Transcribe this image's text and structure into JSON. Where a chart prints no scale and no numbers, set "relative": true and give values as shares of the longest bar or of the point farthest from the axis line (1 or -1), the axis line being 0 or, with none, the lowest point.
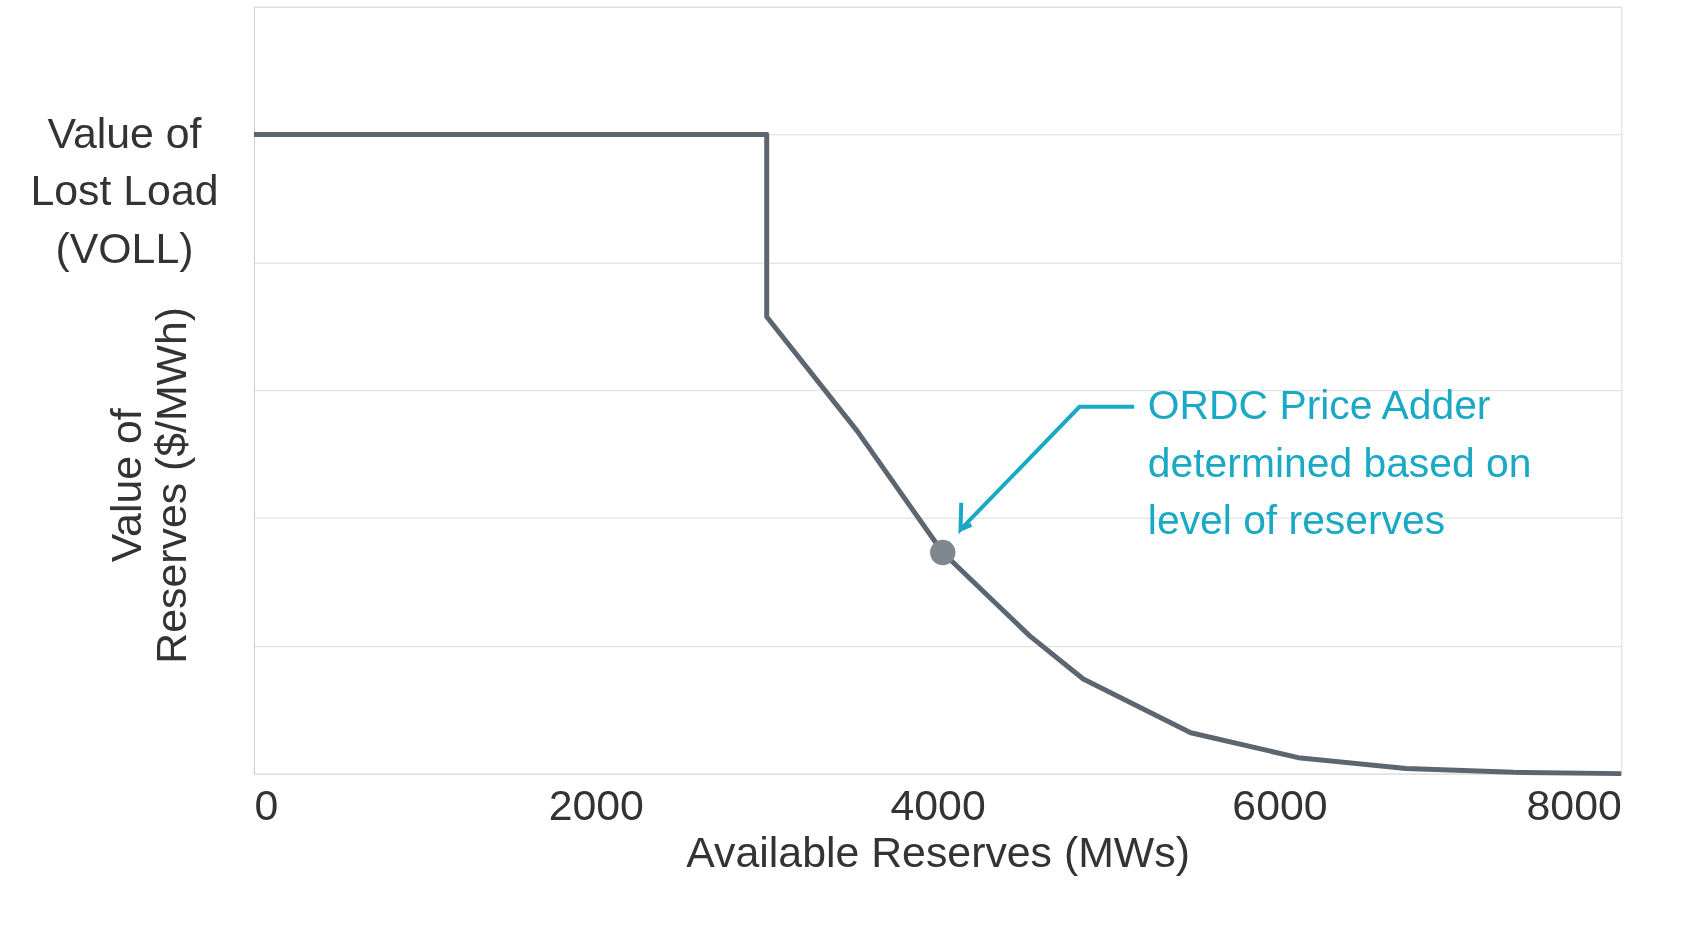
{
  "chart_data": {
    "type": "line",
    "relative": true,
    "xlabel": "Available Reserves (MWs)",
    "ylabel": "Value of\nReserves ($/MWh)",
    "xlim": [
      0,
      8000
    ],
    "xticks": [
      0,
      2000,
      4000,
      6000,
      8000
    ],
    "grid": "y",
    "marker": "none",
    "line_style": "solid",
    "series": [
      {
        "color": "#5c6670",
        "x": [
          0,
          3000,
          3000,
          3530,
          4030,
          4537,
          4852,
          5481,
          6110,
          6740,
          7370,
          8000
        ],
        "values": [
          1,
          1,
          0.715,
          0.536,
          0.346,
          0.216,
          0.148,
          0.064,
          0.025,
          0.008,
          0.002,
          0
        ]
      },
      {
        "type": "scatter",
        "color": "#7f8890",
        "marker": "circle",
        "x": [
          4030
        ],
        "values": [
          0.346
        ]
      }
    ],
    "annotations": [
      "Value of\nLost Load\n(VOLL)",
      "ORDC Price Adder\ndetermined based on\nlevel of reserves"
    ]
  }
}
